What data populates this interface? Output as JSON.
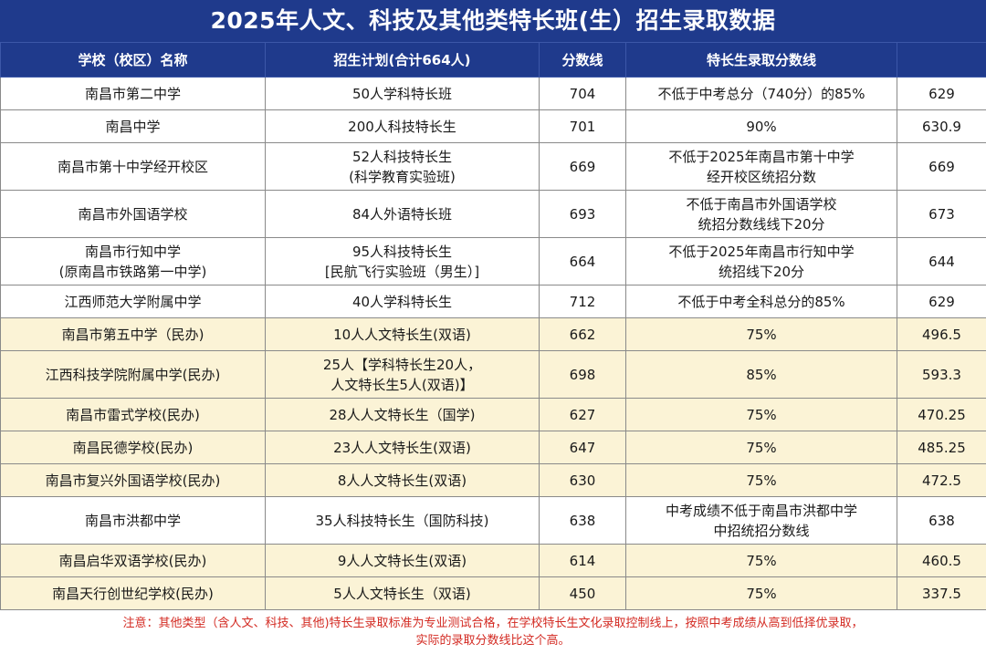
{
  "title": "2025年人文、科技及其他类特长班(生）招生录取数据",
  "headers": [
    "学校（校区）名称",
    "招生计划(合计664人)",
    "分数线",
    "特长生录取分数线",
    ""
  ],
  "rows": [
    {
      "school": "南昌市第二中学",
      "plan": "50人学科特长班",
      "score": "704",
      "rule": "不低于中考总分（740分）的85%",
      "line": "629",
      "type": "public"
    },
    {
      "school": "南昌中学",
      "plan": "200人科技特长生",
      "score": "701",
      "rule": "90%",
      "line": "630.9",
      "type": "public"
    },
    {
      "school": "南昌市第十中学经开校区",
      "plan": "52人科技特长生\n(科学教育实验班)",
      "score": "669",
      "rule": "不低于2025年南昌市第十中学\n经开校区统招分数",
      "line": "669",
      "type": "public"
    },
    {
      "school": "南昌市外国语学校",
      "plan": "84人外语特长班",
      "score": "693",
      "rule": "不低于南昌市外国语学校\n统招分数线线下20分",
      "line": "673",
      "type": "public"
    },
    {
      "school": "南昌市行知中学\n(原南昌市铁路第一中学)",
      "plan": "95人科技特长生\n[民航飞行实验班（男生）]",
      "score": "664",
      "rule": "不低于2025年南昌市行知中学\n统招线下20分",
      "line": "644",
      "type": "public"
    },
    {
      "school": "江西师范大学附属中学",
      "plan": "40人学科特长生",
      "score": "712",
      "rule": "不低于中考全科总分的85%",
      "line": "629",
      "type": "public"
    },
    {
      "school": "南昌市第五中学（民办)",
      "plan": "10人人文特长生(双语)",
      "score": "662",
      "rule": "75%",
      "line": "496.5",
      "type": "private"
    },
    {
      "school": "江西科技学院附属中学(民办)",
      "plan": "25人【学科特长生20人，\n人文特长生5人(双语)】",
      "score": "698",
      "rule": "85%",
      "line": "593.3",
      "type": "private"
    },
    {
      "school": "南昌市雷式学校(民办)",
      "plan": "28人人文特长生（国学)",
      "score": "627",
      "rule": "75%",
      "line": "470.25",
      "type": "private"
    },
    {
      "school": "南昌民德学校(民办)",
      "plan": "23人人文特长生(双语)",
      "score": "647",
      "rule": "75%",
      "line": "485.25",
      "type": "private"
    },
    {
      "school": "南昌市复兴外国语学校(民办)",
      "plan": "8人人文特长生(双语)",
      "score": "630",
      "rule": "75%",
      "line": "472.5",
      "type": "private"
    },
    {
      "school": "南昌市洪都中学",
      "plan": "35人科技特长生（国防科技)",
      "score": "638",
      "rule": "中考成绩不低于南昌市洪都中学\n中招统招分数线",
      "line": "638",
      "type": "public"
    },
    {
      "school": "南昌启华双语学校(民办)",
      "plan": "9人人文特长生(双语)",
      "score": "614",
      "rule": "75%",
      "line": "460.5",
      "type": "private"
    },
    {
      "school": "南昌天行创世纪学校(民办)",
      "plan": "5人人文特长生（双语)",
      "score": "450",
      "rule": "75%",
      "line": "337.5",
      "type": "private"
    }
  ],
  "note": "注意：其他类型（含人文、科技、其他)特长生录取标准为专业测试合格，在学校特长生文化录取控制线上，按照中考成绩从高到低择优录取，\n实际的录取分数线比这个高。",
  "colors": {
    "header_bg": "#1f3a8c",
    "private_row_bg": "#fbf3d6",
    "note_text": "#d32a22"
  }
}
